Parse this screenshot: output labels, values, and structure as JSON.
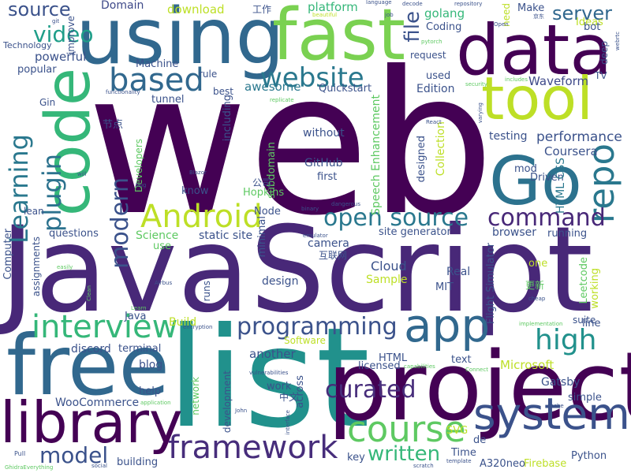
{
  "words": [
    {
      "text": "web",
      "color": "#440154"
    },
    {
      "text": "JavaScript",
      "color": "#482878"
    },
    {
      "text": "list",
      "color": "#21918c"
    },
    {
      "text": "project",
      "color": "#440154"
    },
    {
      "text": "free",
      "color": "#31688e"
    },
    {
      "text": "using",
      "color": "#31688e"
    },
    {
      "text": "fast",
      "color": "#7ad151"
    },
    {
      "text": "data",
      "color": "#440154"
    },
    {
      "text": "code",
      "color": "#35b779"
    },
    {
      "text": "tool",
      "color": "#bddf26"
    },
    {
      "text": "Go",
      "color": "#2c728e"
    },
    {
      "text": "library",
      "color": "#440154"
    },
    {
      "text": "app",
      "color": "#31688e"
    },
    {
      "text": "system",
      "color": "#3b528b"
    },
    {
      "text": "course",
      "color": "#5ec962"
    },
    {
      "text": "framework",
      "color": "#472d7b"
    },
    {
      "text": "interview",
      "color": "#35b779"
    },
    {
      "text": "Android",
      "color": "#bddf26"
    },
    {
      "text": "website",
      "color": "#2a788e"
    },
    {
      "text": "based",
      "color": "#31688e"
    },
    {
      "text": "repo",
      "color": "#2a788e"
    },
    {
      "text": "high",
      "color": "#21918c"
    },
    {
      "text": "open source",
      "color": "#2a788e"
    },
    {
      "text": "command",
      "color": "#482878"
    },
    {
      "text": "programming",
      "color": "#3b528b"
    },
    {
      "text": "curated",
      "color": "#472d7b"
    },
    {
      "text": "Learning",
      "color": "#2a788e"
    },
    {
      "text": "plugin",
      "color": "#2c728e"
    },
    {
      "text": "video",
      "color": "#1f9e89"
    },
    {
      "text": "source",
      "color": "#3b528b"
    },
    {
      "text": "server",
      "color": "#31688e"
    },
    {
      "text": "file",
      "color": "#3b528b"
    },
    {
      "text": "modern",
      "color": "#3b528b"
    },
    {
      "text": "model",
      "color": "#3b528b"
    },
    {
      "text": "written",
      "color": "#35b779"
    },
    {
      "text": "performance",
      "color": "#3b528b"
    },
    {
      "text": "Waveform",
      "color": "#3e4989"
    },
    {
      "text": "platform",
      "color": "#35b779"
    },
    {
      "text": "golang",
      "color": "#35b779"
    },
    {
      "text": "download",
      "color": "#bddf26"
    },
    {
      "text": "Domain",
      "color": "#3e4989"
    },
    {
      "text": "powerful",
      "color": "#3b528b"
    },
    {
      "text": "popular",
      "color": "#3b528b"
    },
    {
      "text": "Machine",
      "color": "#3b528b"
    },
    {
      "text": "tunnel",
      "color": "#3b528b"
    },
    {
      "text": "awesome",
      "color": "#2a788e"
    },
    {
      "text": "Quickstart",
      "color": "#3b528b"
    },
    {
      "text": "Edition",
      "color": "#3b528b"
    },
    {
      "text": "used",
      "color": "#3b528b"
    },
    {
      "text": "testing",
      "color": "#3b528b"
    },
    {
      "text": "Coursera",
      "color": "#3b528b"
    },
    {
      "text": "Driven",
      "color": "#3b528b"
    },
    {
      "text": "mod",
      "color": "#3b528b"
    },
    {
      "text": "HTML CSS",
      "color": "#2a788e"
    },
    {
      "text": "Microsoft",
      "color": "#bddf26"
    },
    {
      "text": "Gatsby",
      "color": "#3b528b"
    },
    {
      "text": "Python",
      "color": "#3b528b"
    },
    {
      "text": "Firebase",
      "color": "#bddf26"
    },
    {
      "text": "A320neo",
      "color": "#3b528b"
    },
    {
      "text": "Time",
      "color": "#3b528b"
    },
    {
      "text": "key",
      "color": "#3b528b"
    },
    {
      "text": "SVG",
      "color": "#bddf26"
    },
    {
      "text": "de",
      "color": "#3b528b"
    },
    {
      "text": "building",
      "color": "#3b528b"
    },
    {
      "text": "help",
      "color": "#3b528b"
    },
    {
      "text": "WooCommerce",
      "color": "#3b528b"
    },
    {
      "text": "discord",
      "color": "#3b528b"
    },
    {
      "text": "terminal",
      "color": "#3b528b"
    },
    {
      "text": "another",
      "color": "#3b528b"
    },
    {
      "text": "blog",
      "color": "#3b528b"
    },
    {
      "text": "Java",
      "color": "#3b528b"
    },
    {
      "text": "Build",
      "color": "#bddf26"
    },
    {
      "text": "Software",
      "color": "#bddf26"
    },
    {
      "text": "Science",
      "color": "#5ec962"
    },
    {
      "text": "static site",
      "color": "#3b528b"
    },
    {
      "text": "site generator",
      "color": "#3b528b"
    },
    {
      "text": "browser",
      "color": "#3b528b"
    },
    {
      "text": "running",
      "color": "#3b528b"
    },
    {
      "text": "camera",
      "color": "#3b528b"
    },
    {
      "text": "design",
      "color": "#3b528b"
    },
    {
      "text": "Cloud",
      "color": "#3b528b"
    },
    {
      "text": "Sample",
      "color": "#bddf26"
    },
    {
      "text": "Real",
      "color": "#3b528b"
    },
    {
      "text": "MIT",
      "color": "#3b528b"
    },
    {
      "text": "HTML",
      "color": "#3b528b"
    },
    {
      "text": "text",
      "color": "#3b528b"
    },
    {
      "text": "licensed",
      "color": "#3b528b"
    },
    {
      "text": "across",
      "color": "#3b528b"
    },
    {
      "text": "work",
      "color": "#3b528b"
    },
    {
      "text": "GitHub",
      "color": "#3b528b"
    },
    {
      "text": "first",
      "color": "#3b528b"
    },
    {
      "text": "Collection",
      "color": "#bddf26"
    },
    {
      "text": "designed",
      "color": "#3b528b"
    },
    {
      "text": "Speech Enhancement",
      "color": "#5ec962"
    },
    {
      "text": "without",
      "color": "#3b528b"
    },
    {
      "text": "subdomain",
      "color": "#5ec962"
    },
    {
      "text": "including",
      "color": "#3b528b"
    },
    {
      "text": "best",
      "color": "#3b528b"
    },
    {
      "text": "rule",
      "color": "#3b528b"
    },
    {
      "text": "Developers",
      "color": "#5ec962"
    },
    {
      "text": "Hopkins",
      "color": "#5ec962"
    },
    {
      "text": "know",
      "color": "#3b528b"
    },
    {
      "text": "Node",
      "color": "#3b528b"
    },
    {
      "text": "questions",
      "color": "#3b528b"
    },
    {
      "text": "use",
      "color": "#5ec962"
    },
    {
      "text": "minimal",
      "color": "#3b528b"
    },
    {
      "text": "Computer",
      "color": "#3b528b"
    },
    {
      "text": "assignments",
      "color": "#3b528b"
    },
    {
      "text": "Gin",
      "color": "#3b528b"
    },
    {
      "text": "Technology",
      "color": "#3b528b"
    },
    {
      "text": "improve",
      "color": "#3b528b"
    },
    {
      "text": "request",
      "color": "#3b528b"
    },
    {
      "text": "Coding",
      "color": "#3b528b"
    },
    {
      "text": "Ideas",
      "color": "#bddf26"
    },
    {
      "text": "bot",
      "color": "#3b528b"
    },
    {
      "text": "Make",
      "color": "#3b528b"
    },
    {
      "text": "deep",
      "color": "#3b528b"
    },
    {
      "text": "TV",
      "color": "#3b528b"
    },
    {
      "text": "need",
      "color": "#bddf26"
    },
    {
      "text": "Flight Simulator",
      "color": "#3b528b"
    },
    {
      "text": "Leetcode",
      "color": "#5ec962"
    },
    {
      "text": "working",
      "color": "#bddf26"
    },
    {
      "text": "line",
      "color": "#3b528b"
    },
    {
      "text": "suite",
      "color": "#3b528b"
    },
    {
      "text": "one",
      "color": "#bddf26"
    },
    {
      "text": "simple",
      "color": "#3b528b"
    },
    {
      "text": "runs",
      "color": "#3b528b"
    },
    {
      "text": "development",
      "color": "#3b528b"
    },
    {
      "text": "network",
      "color": "#5ec962"
    },
    {
      "text": "lean",
      "color": "#3b528b"
    },
    {
      "text": "工作",
      "color": "#3b528b"
    },
    {
      "text": "节点",
      "color": "#3b528b"
    },
    {
      "text": "公司",
      "color": "#3b528b"
    },
    {
      "text": "互联网",
      "color": "#3b528b"
    },
    {
      "text": "中文",
      "color": "#3b528b"
    },
    {
      "text": "更新",
      "color": "#5ec962"
    },
    {
      "text": "language",
      "color": "#3b528b"
    },
    {
      "text": "repository",
      "color": "#3b528b"
    },
    {
      "text": "decode",
      "color": "#3b528b"
    },
    {
      "text": "functionality",
      "color": "#3b528b"
    },
    {
      "text": "replicate",
      "color": "#5ec962"
    },
    {
      "text": "security",
      "color": "#5ec962"
    },
    {
      "text": "encryption",
      "color": "#3b528b"
    },
    {
      "text": "vulnerabilities",
      "color": "#3b528b"
    },
    {
      "text": "implementation",
      "color": "#5ec962"
    },
    {
      "text": "dangerous",
      "color": "#3b528b"
    },
    {
      "text": "binary",
      "color": "#3b528b"
    },
    {
      "text": "emulator",
      "color": "#3b528b"
    },
    {
      "text": "Airbus",
      "color": "#3b528b"
    },
    {
      "text": "John",
      "color": "#3b528b"
    },
    {
      "text": "interface",
      "color": "#3b528b"
    },
    {
      "text": "template",
      "color": "#3b528b"
    },
    {
      "text": "scratch",
      "color": "#3b528b"
    },
    {
      "text": "social",
      "color": "#3b528b"
    },
    {
      "text": "cache",
      "color": "#3b528b"
    },
    {
      "text": "Connect",
      "color": "#5ec962"
    },
    {
      "text": "capabilities",
      "color": "#5ec962"
    },
    {
      "text": "application",
      "color": "#5ec962"
    },
    {
      "text": "Pull",
      "color": "#3b528b"
    },
    {
      "text": "Clean",
      "color": "#5ec962"
    },
    {
      "text": "Learn",
      "color": "#5ec962"
    },
    {
      "text": "cheap",
      "color": "#3b528b"
    },
    {
      "text": "easily",
      "color": "#5ec962"
    },
    {
      "text": "bug",
      "color": "#3b528b"
    },
    {
      "text": "will",
      "color": "#3b528b"
    },
    {
      "text": "pytorch",
      "color": "#5ec962"
    },
    {
      "text": "Open",
      "color": "#3b528b"
    },
    {
      "text": "job",
      "color": "#3b528b"
    },
    {
      "text": "includes",
      "color": "#5ec962"
    },
    {
      "text": "varying",
      "color": "#3b528b"
    },
    {
      "text": "React",
      "color": "#3b528b"
    },
    {
      "text": "Blazor",
      "color": "#3b528b"
    },
    {
      "text": "GhidraEverything",
      "color": "#5ec962"
    },
    {
      "text": "beautiful",
      "color": "#bddf26"
    },
    {
      "text": "git",
      "color": "#3b528b"
    },
    {
      "text": "京东",
      "color": "#3b528b"
    },
    {
      "text": "webrtc",
      "color": "#3b528b"
    }
  ]
}
